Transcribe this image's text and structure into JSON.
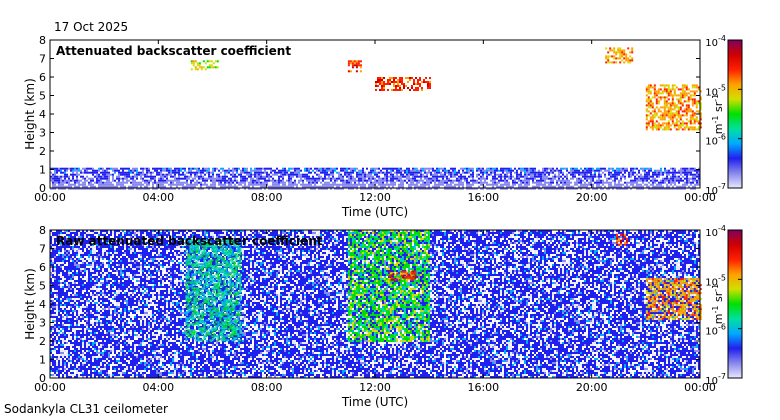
{
  "date": "17 Oct 2025",
  "footer": "Sodankyla CL31 ceilometer",
  "colorbar": {
    "max_label": "10-4",
    "labels": [
      {
        "mantissa": "10",
        "exp": "-4"
      },
      {
        "mantissa": "10",
        "exp": "-5"
      },
      {
        "mantissa": "10",
        "exp": "-6"
      },
      {
        "mantissa": "10",
        "exp": "-7"
      }
    ],
    "unit": "m-1 sr-1",
    "unit_parts": [
      "m",
      "-1",
      " sr",
      "-1"
    ],
    "colors": [
      "#e8e8ff",
      "#8888ee",
      "#2020ee",
      "#00aaff",
      "#00e0a0",
      "#00e000",
      "#d0e000",
      "#ffa000",
      "#ff2000",
      "#d00000",
      "#800060"
    ]
  },
  "chart_data": [
    {
      "type": "heatmap",
      "title": "Attenuated backscatter coefficient",
      "xlabel": "Time (UTC)",
      "ylabel": "Height (km)",
      "xlim": [
        0,
        24
      ],
      "ylim": [
        0,
        8
      ],
      "xticks": [
        0,
        4,
        8,
        12,
        16,
        20,
        24
      ],
      "xticklabels": [
        "00:00",
        "04:00",
        "08:00",
        "12:00",
        "16:00",
        "20:00",
        "00:00"
      ],
      "yticks": [
        0,
        1,
        2,
        3,
        4,
        5,
        6,
        7,
        8
      ],
      "yticklabels": [
        "0",
        "1",
        "2",
        "3",
        "4",
        "5",
        "6",
        "7",
        "8"
      ],
      "color_scale": {
        "min": 1e-07,
        "max": 0.0001,
        "log": true
      },
      "features": [
        {
          "name": "boundary layer",
          "t0": 0,
          "t1": 24,
          "h0": 0,
          "h1": 1.1,
          "level": 2
        },
        {
          "name": "cloud 05:00",
          "t0": 5.2,
          "t1": 6.2,
          "h0": 6.4,
          "h1": 6.9,
          "level": 6
        },
        {
          "name": "cloud 11:00",
          "t0": 11.0,
          "t1": 11.5,
          "h0": 6.3,
          "h1": 6.9,
          "level": 8
        },
        {
          "name": "cloud 12:30",
          "t0": 12.0,
          "t1": 14.0,
          "h0": 5.3,
          "h1": 6.0,
          "level": 8
        },
        {
          "name": "cloud 21:00",
          "t0": 20.5,
          "t1": 21.5,
          "h0": 6.8,
          "h1": 7.6,
          "level": 7
        },
        {
          "name": "cloud 22:00",
          "t0": 22.0,
          "t1": 24.0,
          "h0": 3.2,
          "h1": 5.6,
          "level": 7
        }
      ]
    },
    {
      "type": "heatmap",
      "title": "Raw attenuated backscatter coefficient",
      "xlabel": "Time (UTC)",
      "ylabel": "Height (km)",
      "xlim": [
        0,
        24
      ],
      "ylim": [
        0,
        8
      ],
      "xticks": [
        0,
        4,
        8,
        12,
        16,
        20,
        24
      ],
      "xticklabels": [
        "00:00",
        "04:00",
        "08:00",
        "12:00",
        "16:00",
        "20:00",
        "00:00"
      ],
      "yticks": [
        0,
        1,
        2,
        3,
        4,
        5,
        6,
        7,
        8
      ],
      "yticklabels": [
        "0",
        "1",
        "2",
        "3",
        "4",
        "5",
        "6",
        "7",
        "8"
      ],
      "color_scale": {
        "min": 1e-07,
        "max": 0.0001,
        "log": true
      },
      "features": [
        {
          "name": "noise field",
          "t0": 0,
          "t1": 24,
          "h0": 0,
          "h1": 8,
          "level": 2
        },
        {
          "name": "green band 05:00",
          "t0": 5.0,
          "t1": 7.0,
          "h0": 2.0,
          "h1": 7.5,
          "level": 4
        },
        {
          "name": "green band 11:00",
          "t0": 11.0,
          "t1": 14.0,
          "h0": 2.0,
          "h1": 8.0,
          "level": 5
        },
        {
          "name": "cloud 12:30",
          "t0": 12.5,
          "t1": 13.5,
          "h0": 5.3,
          "h1": 5.8,
          "level": 8
        },
        {
          "name": "cloud 21:00",
          "t0": 20.9,
          "t1": 21.3,
          "h0": 7.2,
          "h1": 7.8,
          "level": 8
        },
        {
          "name": "cloud 22:00",
          "t0": 22.0,
          "t1": 24.0,
          "h0": 3.2,
          "h1": 5.4,
          "level": 7
        }
      ]
    }
  ]
}
